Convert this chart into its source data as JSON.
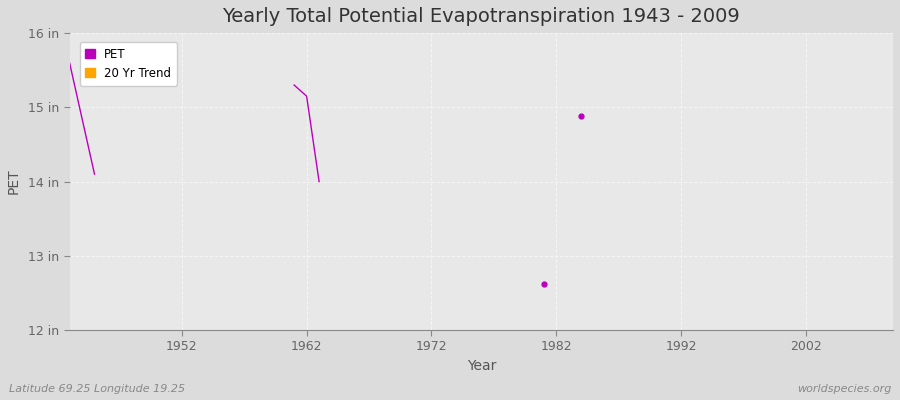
{
  "title": "Yearly Total Potential Evapotranspiration 1943 - 2009",
  "xlabel": "Year",
  "ylabel": "PET",
  "footnote_left": "Latitude 69.25 Longitude 19.25",
  "footnote_right": "worldspecies.org",
  "xlim": [
    1943,
    2009
  ],
  "ylim": [
    12,
    16
  ],
  "yticks": [
    12,
    13,
    14,
    15,
    16
  ],
  "ytick_labels": [
    "12 in",
    "13 in",
    "14 in",
    "15 in",
    "16 in"
  ],
  "xticks": [
    1952,
    1962,
    1972,
    1982,
    1992,
    2002
  ],
  "figure_bg_color": "#dcdcdc",
  "plot_bg_color": "#e8e8e8",
  "grid_color": "#f5f5f5",
  "pet_color": "#bb00bb",
  "trend_color": "#ffa500",
  "pet_data": [
    [
      1943,
      15.6
    ],
    [
      1944,
      14.85
    ],
    [
      1945,
      14.1
    ],
    [
      1961,
      15.3
    ],
    [
      1962,
      15.15
    ],
    [
      1963,
      14.0
    ],
    [
      1981,
      12.62
    ],
    [
      1984,
      14.88
    ]
  ],
  "legend_pet_label": "PET",
  "legend_trend_label": "20 Yr Trend",
  "title_fontsize": 14,
  "tick_fontsize": 9,
  "label_fontsize": 10,
  "footnote_fontsize": 8
}
